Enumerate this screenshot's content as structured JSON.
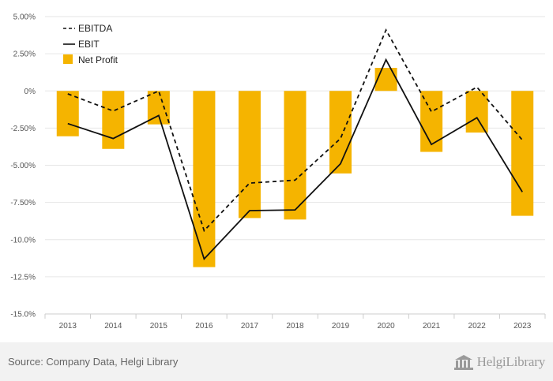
{
  "chart_data": {
    "type": "bar",
    "categories": [
      "2013",
      "2014",
      "2015",
      "2016",
      "2017",
      "2018",
      "2019",
      "2020",
      "2021",
      "2022",
      "2023"
    ],
    "y_ticks": [
      "5.00%",
      "2.50%",
      "0%",
      "-2.50%",
      "-5.00%",
      "-7.50%",
      "-10.0%",
      "-12.5%",
      "-15.0%"
    ],
    "ylim": [
      -15,
      5
    ],
    "legend_position": "top-left",
    "grid": true,
    "series": [
      {
        "name": "EBITDA",
        "kind": "line",
        "dash": "dashed",
        "color": "#111111",
        "values": [
          -0.2,
          -1.35,
          0.0,
          -9.4,
          -6.2,
          -6.0,
          -3.2,
          4.1,
          -1.4,
          0.25,
          -3.3
        ]
      },
      {
        "name": "EBIT",
        "kind": "line",
        "dash": "solid",
        "color": "#111111",
        "values": [
          -2.2,
          -3.2,
          -1.65,
          -11.3,
          -8.05,
          -8.0,
          -4.9,
          2.1,
          -3.6,
          -1.8,
          -6.8
        ]
      },
      {
        "name": "Net Profit",
        "kind": "bar",
        "color": "#F5B400",
        "values": [
          -3.05,
          -3.9,
          -2.25,
          -11.85,
          -8.55,
          -8.65,
          -5.55,
          1.55,
          -4.1,
          -2.8,
          -8.4
        ]
      }
    ]
  },
  "footer": {
    "source": "Source: Company Data, Helgi Library",
    "brand": "HelgiLibrary",
    "brand_icon": "library-building-icon"
  }
}
